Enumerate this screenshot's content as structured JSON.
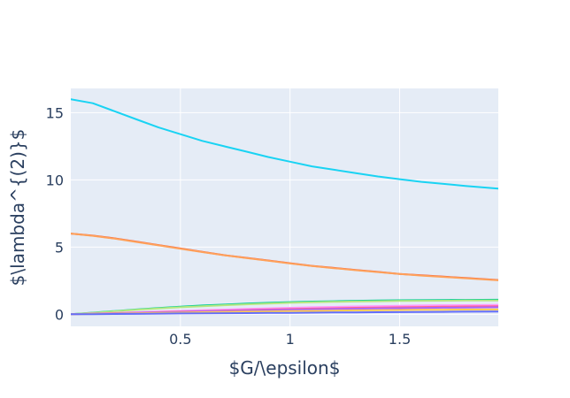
{
  "chart_data": {
    "type": "line",
    "title": "",
    "xlabel": "$G/\\epsilon$",
    "ylabel": "$\\lambda^{(2)}$",
    "xlim": [
      0,
      1.95
    ],
    "ylim": [
      -0.9,
      16.8
    ],
    "x_ticks": [
      0.5,
      1,
      1.5
    ],
    "x_tick_labels": [
      "0.5",
      "1",
      "1.5"
    ],
    "y_ticks": [
      0,
      5,
      10,
      15
    ],
    "y_tick_labels": [
      "0",
      "5",
      "10",
      "15"
    ],
    "grid": true,
    "legend": "none",
    "background": "#E5ECF6",
    "x": [
      0,
      0.1,
      0.2,
      0.3,
      0.4,
      0.5,
      0.6,
      0.7,
      0.8,
      0.9,
      1.0,
      1.1,
      1.2,
      1.3,
      1.4,
      1.5,
      1.6,
      1.7,
      1.8,
      1.95
    ],
    "series": [
      {
        "color": "#19D3F3",
        "values": [
          16.0,
          15.7,
          15.1,
          14.5,
          13.9,
          13.4,
          12.9,
          12.5,
          12.1,
          11.7,
          11.35,
          11.0,
          10.75,
          10.5,
          10.25,
          10.05,
          9.85,
          9.7,
          9.55,
          9.35
        ]
      },
      {
        "color": "#EF553B",
        "values": [
          6.0,
          5.85,
          5.65,
          5.4,
          5.15,
          4.9,
          4.65,
          4.4,
          4.2,
          4.0,
          3.8,
          3.6,
          3.45,
          3.3,
          3.15,
          3.0,
          2.9,
          2.8,
          2.7,
          2.55
        ]
      },
      {
        "color": "#FFA15A",
        "values": [
          6.0,
          5.84,
          5.63,
          5.38,
          5.13,
          4.88,
          4.63,
          4.39,
          4.18,
          3.98,
          3.78,
          3.59,
          3.43,
          3.28,
          3.14,
          3.0,
          2.88,
          2.78,
          2.68,
          2.53
        ]
      },
      {
        "color": "#00CC96",
        "values": [
          0,
          0.12,
          0.24,
          0.36,
          0.46,
          0.56,
          0.65,
          0.72,
          0.79,
          0.85,
          0.9,
          0.94,
          0.97,
          1.0,
          1.02,
          1.04,
          1.05,
          1.06,
          1.07,
          1.08
        ]
      },
      {
        "color": "#B6E880",
        "values": [
          0,
          0.11,
          0.22,
          0.33,
          0.43,
          0.52,
          0.6,
          0.67,
          0.74,
          0.8,
          0.85,
          0.89,
          0.92,
          0.95,
          0.97,
          0.99,
          1.0,
          1.01,
          1.02,
          1.03
        ]
      },
      {
        "color": "#FF97FF",
        "values": [
          0,
          0.05,
          0.1,
          0.15,
          0.2,
          0.25,
          0.3,
          0.35,
          0.4,
          0.44,
          0.48,
          0.52,
          0.55,
          0.58,
          0.61,
          0.63,
          0.65,
          0.67,
          0.68,
          0.7
        ]
      },
      {
        "color": "#FF6692",
        "values": [
          0,
          0.04,
          0.08,
          0.12,
          0.16,
          0.2,
          0.24,
          0.28,
          0.32,
          0.36,
          0.39,
          0.42,
          0.45,
          0.48,
          0.5,
          0.52,
          0.54,
          0.56,
          0.58,
          0.6
        ]
      },
      {
        "color": "#AB63FA",
        "values": [
          0,
          0.03,
          0.07,
          0.1,
          0.14,
          0.17,
          0.21,
          0.24,
          0.27,
          0.3,
          0.33,
          0.36,
          0.39,
          0.41,
          0.43,
          0.45,
          0.47,
          0.49,
          0.5,
          0.52
        ]
      },
      {
        "color": "#FECB52",
        "values": [
          0,
          0.02,
          0.05,
          0.07,
          0.1,
          0.12,
          0.15,
          0.17,
          0.19,
          0.21,
          0.23,
          0.25,
          0.27,
          0.29,
          0.3,
          0.32,
          0.33,
          0.34,
          0.35,
          0.36
        ]
      },
      {
        "color": "#636EFA",
        "values": [
          0,
          0.01,
          0.02,
          0.03,
          0.05,
          0.06,
          0.07,
          0.08,
          0.09,
          0.1,
          0.11,
          0.12,
          0.13,
          0.14,
          0.15,
          0.16,
          0.17,
          0.18,
          0.19,
          0.2
        ]
      }
    ]
  }
}
